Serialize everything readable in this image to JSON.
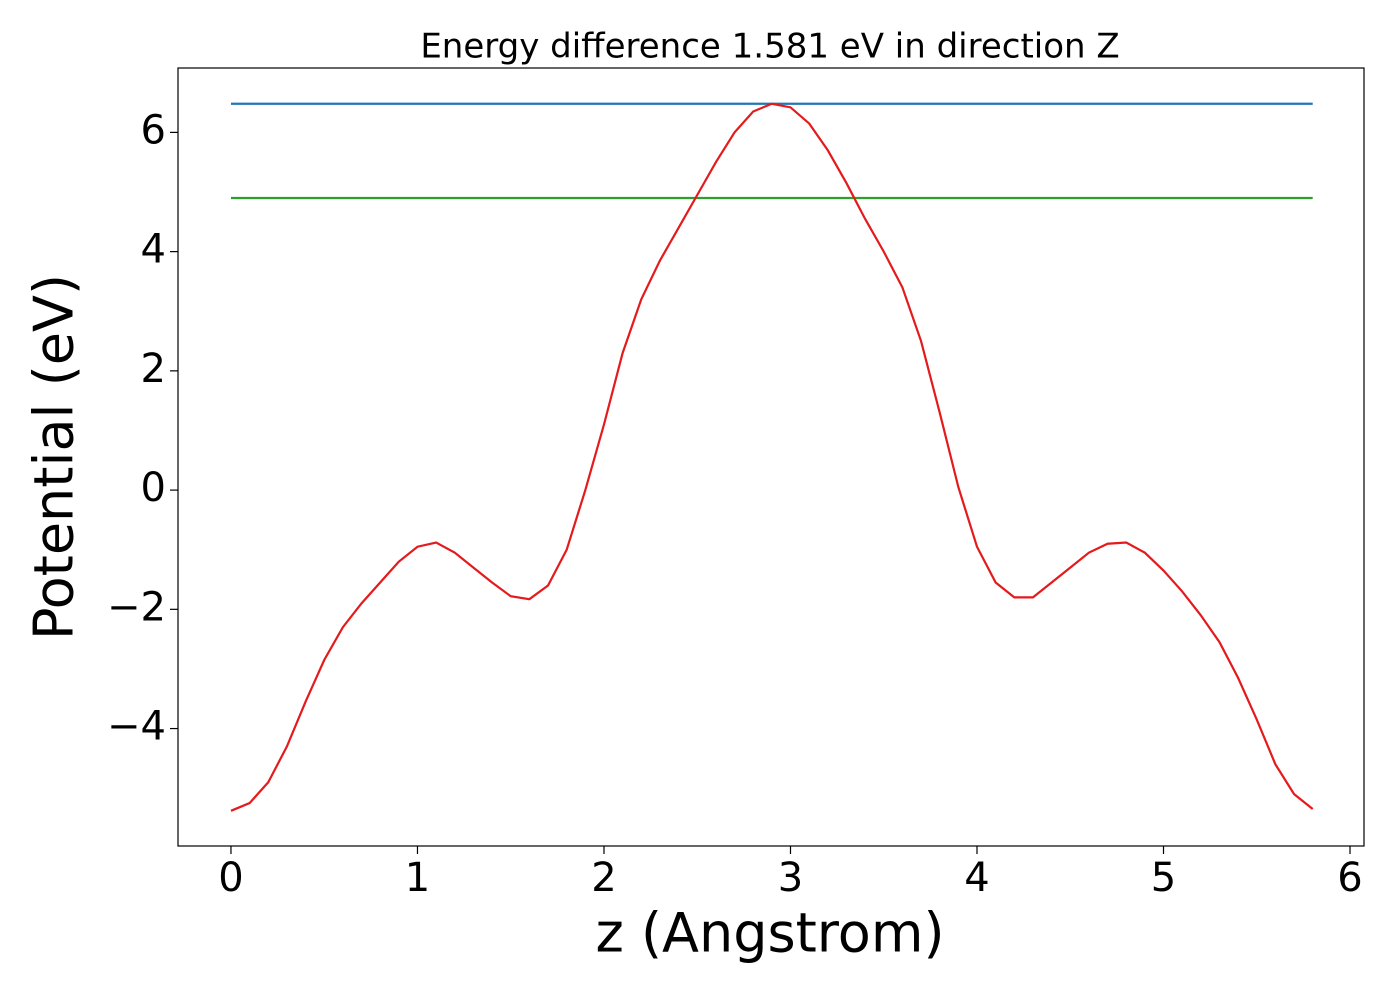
{
  "chart_data": {
    "type": "line",
    "title": "Energy difference 1.581 eV in direction Z",
    "xlabel": "z (Angstrom)",
    "ylabel": "Potential (eV)",
    "xlim": [
      -0.284,
      6.075
    ],
    "ylim": [
      -5.97,
      7.08
    ],
    "xticks": [
      0,
      1,
      2,
      3,
      4,
      5,
      6
    ],
    "yticks": [
      {
        "value": -4,
        "label": "−4"
      },
      {
        "value": -2,
        "label": "−2"
      },
      0,
      2,
      4,
      6
    ],
    "grid": false,
    "series": [
      {
        "color": "#1f77b4",
        "x": [
          0,
          5.8
        ],
        "values": [
          6.48,
          6.48
        ]
      },
      {
        "color": "#2ca02c",
        "x": [
          0,
          5.8
        ],
        "values": [
          4.9,
          4.9
        ]
      },
      {
        "color": "#e41a1c",
        "x": [
          0,
          0.1,
          0.2,
          0.3,
          0.4,
          0.5,
          0.6,
          0.7,
          0.8,
          0.9,
          1.0,
          1.1,
          1.2,
          1.3,
          1.4,
          1.5,
          1.6,
          1.7,
          1.8,
          1.9,
          2.0,
          2.1,
          2.2,
          2.3,
          2.4,
          2.5,
          2.6,
          2.7,
          2.8,
          2.9,
          3.0,
          3.1,
          3.2,
          3.3,
          3.4,
          3.5,
          3.6,
          3.7,
          3.8,
          3.9,
          4.0,
          4.1,
          4.2,
          4.3,
          4.4,
          4.5,
          4.6,
          4.7,
          4.8,
          4.9,
          5.0,
          5.1,
          5.2,
          5.3,
          5.4,
          5.5,
          5.6,
          5.7,
          5.8
        ],
        "values": [
          -5.38,
          -5.25,
          -4.9,
          -4.3,
          -3.55,
          -2.85,
          -2.3,
          -1.9,
          -1.55,
          -1.2,
          -0.95,
          -0.88,
          -1.05,
          -1.3,
          -1.55,
          -1.78,
          -1.83,
          -1.6,
          -1.0,
          0.0,
          1.1,
          2.3,
          3.2,
          3.85,
          4.4,
          4.95,
          5.5,
          6.0,
          6.35,
          6.48,
          6.42,
          6.15,
          5.7,
          5.15,
          4.55,
          4.0,
          3.4,
          2.5,
          1.3,
          0.05,
          -0.95,
          -1.55,
          -1.8,
          -1.8,
          -1.55,
          -1.3,
          -1.05,
          -0.9,
          -0.88,
          -1.05,
          -1.35,
          -1.7,
          -2.1,
          -2.55,
          -3.15,
          -3.85,
          -4.6,
          -5.1,
          -5.35
        ]
      }
    ]
  }
}
